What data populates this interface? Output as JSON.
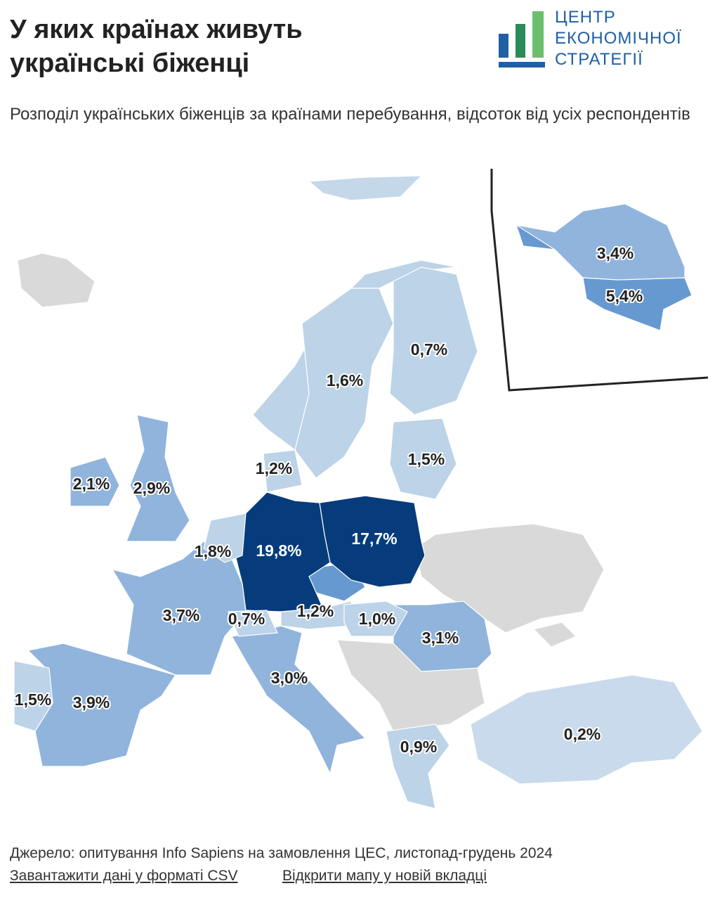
{
  "header": {
    "title": "У яких країнах живуть українські біженці",
    "subtitle": "Розподіл українських біженців за країнами перебування, відсоток від усіх респондентів",
    "logo": [
      "ЦЕНТР",
      "ЕКОНОМІЧНОЇ",
      "СТРАТЕГІЇ"
    ]
  },
  "map": {
    "values": [
      19.8,
      17.7,
      5.4,
      3.9,
      3.7,
      3.4,
      3.1,
      3.0,
      2.9,
      2.1,
      1.8,
      1.6,
      1.5,
      1.5,
      1.2,
      1.2,
      1.0,
      0.9,
      0.7,
      0.7,
      0.2
    ],
    "value_labels": [
      "19,8%",
      "17,7%",
      "5,4%",
      "3,9%",
      "3,7%",
      "3,4%",
      "3,1%",
      "3,0%",
      "2,9%",
      "2,1%",
      "1,8%",
      "1,6%",
      "1,5%",
      "1,5%",
      "1,2%",
      "1,2%",
      "1,0%",
      "0,9%",
      "0,7%",
      "0,7%",
      "0,2%"
    ]
  },
  "footer": {
    "source": "Джерело: опитування Info Sapiens на замовлення ЦЕС, листопад-грудень 2024",
    "links": [
      "Завантажити дані у форматі CSV",
      "Відкрити мапу у новій вкладці"
    ]
  }
}
